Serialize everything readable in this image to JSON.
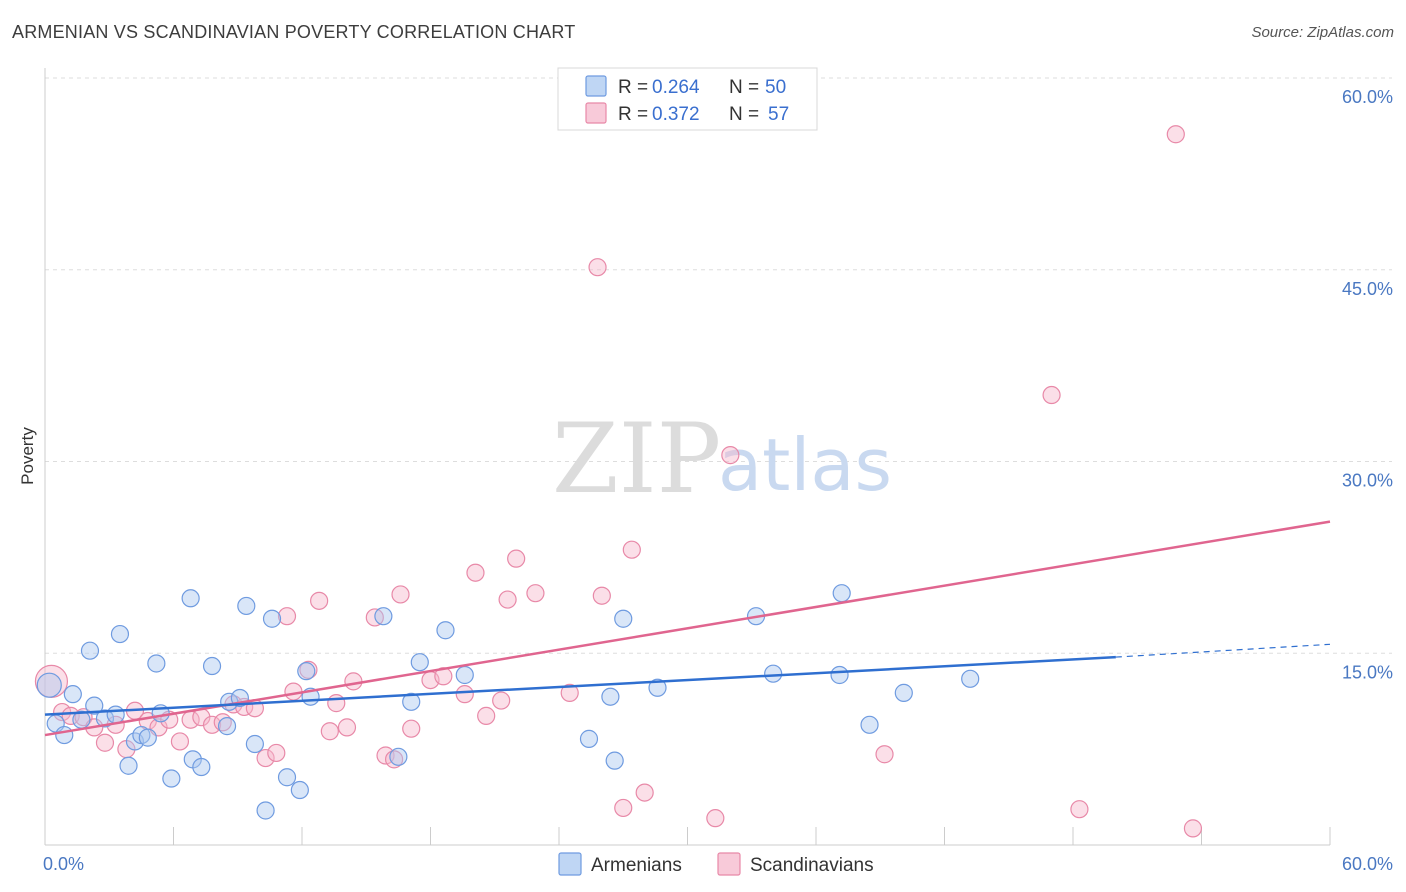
{
  "header": {
    "title": "ARMENIAN VS SCANDINAVIAN POVERTY CORRELATION CHART",
    "source": "Source: ZipAtlas.com"
  },
  "watermark": {
    "zip": "ZIP",
    "atlas": "atlas"
  },
  "colors": {
    "armenians_fill": "#aac8f0",
    "armenians_stroke": "#6f9be0",
    "armenians_line": "#2f6fd0",
    "scandinavians_fill": "#f6b8cc",
    "scandinavians_stroke": "#e889a8",
    "scandinavians_line": "#e0658f",
    "tick_label": "#4a78c2",
    "grid": "#dddddd"
  },
  "legend": {
    "armenians": {
      "r_label": "R =",
      "r_value": "0.264",
      "n_label": "N =",
      "n_value": "50"
    },
    "scandinavians": {
      "r_label": "R =",
      "r_value": "0.372",
      "n_label": "N =",
      "n_value": "57"
    }
  },
  "bottom_legend": {
    "armenians": "Armenians",
    "scandinavians": "Scandinavians"
  },
  "chart_data": {
    "type": "scatter",
    "xlabel": "",
    "ylabel": "Poverty",
    "xlim": [
      0,
      60
    ],
    "ylim": [
      0,
      60
    ],
    "x_tick_labels": [
      "0.0%",
      "60.0%"
    ],
    "y_ticks": [
      15,
      30,
      45,
      60
    ],
    "y_tick_labels": [
      "15.0%",
      "30.0%",
      "45.0%",
      "60.0%"
    ],
    "grid": true,
    "legend_position": "top-center",
    "series": [
      {
        "name": "Armenians",
        "points": [
          [
            0.2,
            12.5
          ],
          [
            0.5,
            9.5
          ],
          [
            0.9,
            8.6
          ],
          [
            1.3,
            11.8
          ],
          [
            1.7,
            9.8
          ],
          [
            2.1,
            15.2
          ],
          [
            2.3,
            10.9
          ],
          [
            2.8,
            9.9
          ],
          [
            3.3,
            10.2
          ],
          [
            3.5,
            16.5
          ],
          [
            3.9,
            6.2
          ],
          [
            4.2,
            8.1
          ],
          [
            4.5,
            8.6
          ],
          [
            4.8,
            8.4
          ],
          [
            5.2,
            14.2
          ],
          [
            5.4,
            10.3
          ],
          [
            5.9,
            5.2
          ],
          [
            6.8,
            19.3
          ],
          [
            6.9,
            6.7
          ],
          [
            7.3,
            6.1
          ],
          [
            7.8,
            14.0
          ],
          [
            8.5,
            9.3
          ],
          [
            8.6,
            11.2
          ],
          [
            9.1,
            11.5
          ],
          [
            9.4,
            18.7
          ],
          [
            9.8,
            7.9
          ],
          [
            10.3,
            2.7
          ],
          [
            10.6,
            17.7
          ],
          [
            11.3,
            5.3
          ],
          [
            11.9,
            4.3
          ],
          [
            12.2,
            13.6
          ],
          [
            12.4,
            11.6
          ],
          [
            15.8,
            17.9
          ],
          [
            16.5,
            6.9
          ],
          [
            17.1,
            11.2
          ],
          [
            17.5,
            14.3
          ],
          [
            18.7,
            16.8
          ],
          [
            19.6,
            13.3
          ],
          [
            25.4,
            8.3
          ],
          [
            26.4,
            11.6
          ],
          [
            26.6,
            6.6
          ],
          [
            27.0,
            17.7
          ],
          [
            28.6,
            12.3
          ],
          [
            33.2,
            17.9
          ],
          [
            34.0,
            13.4
          ],
          [
            37.2,
            19.7
          ],
          [
            37.1,
            13.3
          ],
          [
            38.5,
            9.4
          ],
          [
            40.1,
            11.9
          ],
          [
            43.2,
            13.0
          ]
        ]
      },
      {
        "name": "Scandinavians",
        "points": [
          [
            0.3,
            12.8
          ],
          [
            0.8,
            10.4
          ],
          [
            1.2,
            10.1
          ],
          [
            1.8,
            10.0
          ],
          [
            2.3,
            9.2
          ],
          [
            2.8,
            8.0
          ],
          [
            3.3,
            9.4
          ],
          [
            3.8,
            7.5
          ],
          [
            4.2,
            10.5
          ],
          [
            4.8,
            9.7
          ],
          [
            5.3,
            9.2
          ],
          [
            5.8,
            9.8
          ],
          [
            6.3,
            8.1
          ],
          [
            6.8,
            9.8
          ],
          [
            7.3,
            10.0
          ],
          [
            7.8,
            9.4
          ],
          [
            8.3,
            9.6
          ],
          [
            8.8,
            11.0
          ],
          [
            9.3,
            10.8
          ],
          [
            9.8,
            10.7
          ],
          [
            10.3,
            6.8
          ],
          [
            10.8,
            7.2
          ],
          [
            11.3,
            17.9
          ],
          [
            11.6,
            12.0
          ],
          [
            12.3,
            13.7
          ],
          [
            12.8,
            19.1
          ],
          [
            13.3,
            8.9
          ],
          [
            13.6,
            11.1
          ],
          [
            14.1,
            9.2
          ],
          [
            14.4,
            12.8
          ],
          [
            15.4,
            17.8
          ],
          [
            15.9,
            7.0
          ],
          [
            16.3,
            6.7
          ],
          [
            16.6,
            19.6
          ],
          [
            17.1,
            9.1
          ],
          [
            18.0,
            12.9
          ],
          [
            18.6,
            13.2
          ],
          [
            19.6,
            11.8
          ],
          [
            20.1,
            21.3
          ],
          [
            20.6,
            10.1
          ],
          [
            21.3,
            11.3
          ],
          [
            21.6,
            19.2
          ],
          [
            22.0,
            22.4
          ],
          [
            22.9,
            19.7
          ],
          [
            24.5,
            11.9
          ],
          [
            25.8,
            45.2
          ],
          [
            26.0,
            19.5
          ],
          [
            27.0,
            2.9
          ],
          [
            27.4,
            23.1
          ],
          [
            28.0,
            4.1
          ],
          [
            31.3,
            2.1
          ],
          [
            32.0,
            30.5
          ],
          [
            39.2,
            7.1
          ],
          [
            47.0,
            35.2
          ],
          [
            48.3,
            2.8
          ],
          [
            52.8,
            55.6
          ],
          [
            53.6,
            1.3
          ]
        ]
      }
    ],
    "trendlines": [
      {
        "series": "Armenians",
        "x": [
          0,
          50
        ],
        "y": [
          10.2,
          14.7
        ],
        "dashed_extension_x": [
          50,
          60
        ],
        "dashed_extension_y": [
          14.7,
          15.7
        ]
      },
      {
        "series": "Scandinavians",
        "x": [
          0,
          60
        ],
        "y": [
          8.6,
          25.3
        ]
      }
    ]
  }
}
